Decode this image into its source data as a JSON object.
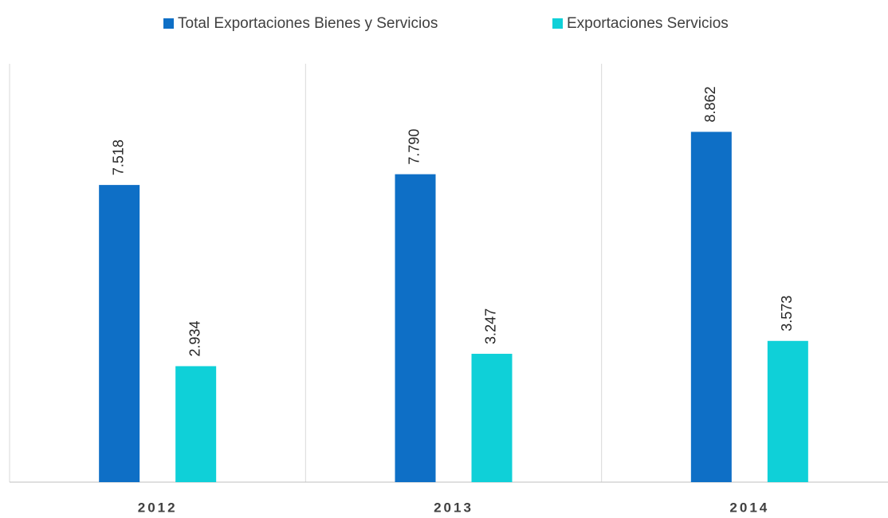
{
  "chart_data": {
    "type": "bar",
    "categories": [
      "2012",
      "2013",
      "2014"
    ],
    "series": [
      {
        "name": "Total Exportaciones Bienes y Servicios",
        "color": "#0e6fc6",
        "values": [
          7.518,
          7.79,
          8.862
        ],
        "value_labels": [
          "7.518",
          "7.790",
          "8.862"
        ]
      },
      {
        "name": "Exportaciones Servicios",
        "color": "#0fd0d8",
        "values": [
          2.934,
          3.247,
          3.573
        ],
        "value_labels": [
          "2.934",
          "3.247",
          "3.573"
        ]
      }
    ],
    "ylim": [
      0,
      10
    ],
    "legend": "top"
  }
}
